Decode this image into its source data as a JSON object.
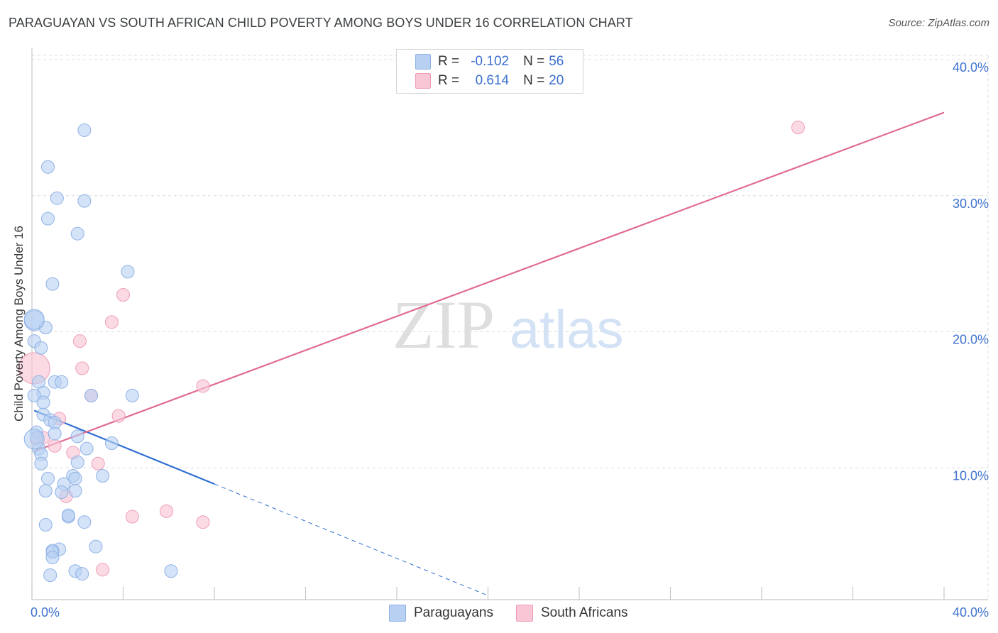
{
  "header": {
    "title": "PARAGUAYAN VS SOUTH AFRICAN CHILD POVERTY AMONG BOYS UNDER 16 CORRELATION CHART",
    "source": "Source: ZipAtlas.com"
  },
  "watermark": {
    "zip": "ZIP",
    "atlas": "atlas"
  },
  "legend": {
    "r_label": "R =",
    "n_label": "N =",
    "paraguayans": {
      "r": "-0.102",
      "n": "56"
    },
    "south_africans": {
      "r": "0.614",
      "n": "20"
    }
  },
  "colors": {
    "blue_fill": "#b8d0f2",
    "blue_stroke": "#8fb2e6",
    "blue_line": "#2f6fd1",
    "pink_fill": "#f9c6d6",
    "pink_stroke": "#ef9db7",
    "pink_line": "#e06b94",
    "tick_label": "#3f72cf",
    "grid": "#dcdcdc"
  },
  "chart_data": {
    "type": "scatter",
    "title": "PARAGUAYAN VS SOUTH AFRICAN CHILD POVERTY AMONG BOYS UNDER 16 CORRELATION CHART",
    "xlabel": "",
    "ylabel": "Child Poverty Among Boys Under 16",
    "xlim": [
      0,
      40
    ],
    "ylim": [
      0,
      40
    ],
    "x_tick_labels": [
      "0.0%",
      "40.0%"
    ],
    "y_ticks": [
      10,
      20,
      30,
      40
    ],
    "y_tick_labels": [
      "10.0%",
      "20.0%",
      "30.0%",
      "40.0%"
    ],
    "legend_position": "top-center",
    "series": [
      {
        "name": "Paraguayans",
        "color": "#8fb2e6",
        "r": -0.102,
        "n": 56,
        "trend": {
          "x0": 0.1,
          "y0": 13.9,
          "x1": 8.0,
          "y1": 8.5,
          "dashed_to_x": 20.0
        },
        "points": [
          [
            2.3,
            34.5
          ],
          [
            0.7,
            31.8
          ],
          [
            1.1,
            29.5
          ],
          [
            2.3,
            29.3
          ],
          [
            0.7,
            28.0
          ],
          [
            2.0,
            26.9
          ],
          [
            4.2,
            24.1
          ],
          [
            0.9,
            23.2
          ],
          [
            0.1,
            20.5
          ],
          [
            0.6,
            20.0
          ],
          [
            0.1,
            19.0
          ],
          [
            0.4,
            18.5
          ],
          [
            1.0,
            16.0
          ],
          [
            1.3,
            16.0
          ],
          [
            0.3,
            16.0
          ],
          [
            0.5,
            15.2
          ],
          [
            0.1,
            15.0
          ],
          [
            2.6,
            15.0
          ],
          [
            4.4,
            15.0
          ],
          [
            0.5,
            14.5
          ],
          [
            0.5,
            13.6
          ],
          [
            0.8,
            13.2
          ],
          [
            1.0,
            13.0
          ],
          [
            0.2,
            12.3
          ],
          [
            1.0,
            12.2
          ],
          [
            2.0,
            12.0
          ],
          [
            0.2,
            11.9
          ],
          [
            3.5,
            11.5
          ],
          [
            0.3,
            11.1
          ],
          [
            2.4,
            11.1
          ],
          [
            0.4,
            10.7
          ],
          [
            2.0,
            10.1
          ],
          [
            0.4,
            10.0
          ],
          [
            3.1,
            9.1
          ],
          [
            1.8,
            9.1
          ],
          [
            1.9,
            8.9
          ],
          [
            0.7,
            8.9
          ],
          [
            1.4,
            8.5
          ],
          [
            0.6,
            8.0
          ],
          [
            1.9,
            8.0
          ],
          [
            1.3,
            7.9
          ],
          [
            1.6,
            6.1
          ],
          [
            1.6,
            6.2
          ],
          [
            2.3,
            5.7
          ],
          [
            0.6,
            5.5
          ],
          [
            2.8,
            3.9
          ],
          [
            1.2,
            3.7
          ],
          [
            0.9,
            3.6
          ],
          [
            0.9,
            3.5
          ],
          [
            0.9,
            3.1
          ],
          [
            1.9,
            2.1
          ],
          [
            2.2,
            1.9
          ],
          [
            6.1,
            2.1
          ],
          [
            0.8,
            1.8
          ],
          [
            0.1,
            20.6
          ],
          [
            0.1,
            11.8
          ]
        ]
      },
      {
        "name": "South Africans",
        "color": "#ef9db7",
        "r": 0.614,
        "n": 20,
        "trend": {
          "x0": 0.1,
          "y0": 10.9,
          "x1": 40.0,
          "y1": 35.8
        },
        "points": [
          [
            33.6,
            34.7
          ],
          [
            4.0,
            22.4
          ],
          [
            3.5,
            20.4
          ],
          [
            2.1,
            19.0
          ],
          [
            2.2,
            17.0
          ],
          [
            0.1,
            17.0
          ],
          [
            7.5,
            15.7
          ],
          [
            2.6,
            15.0
          ],
          [
            3.8,
            13.5
          ],
          [
            1.2,
            13.3
          ],
          [
            0.5,
            11.9
          ],
          [
            1.0,
            11.3
          ],
          [
            1.8,
            10.8
          ],
          [
            2.9,
            10.0
          ],
          [
            1.5,
            7.6
          ],
          [
            4.4,
            6.1
          ],
          [
            5.9,
            6.5
          ],
          [
            7.5,
            5.7
          ],
          [
            3.1,
            2.2
          ],
          [
            0.2,
            11.8
          ]
        ]
      }
    ]
  },
  "bottom_legend": {
    "paraguayans": "Paraguayans",
    "south_africans": "South Africans"
  }
}
